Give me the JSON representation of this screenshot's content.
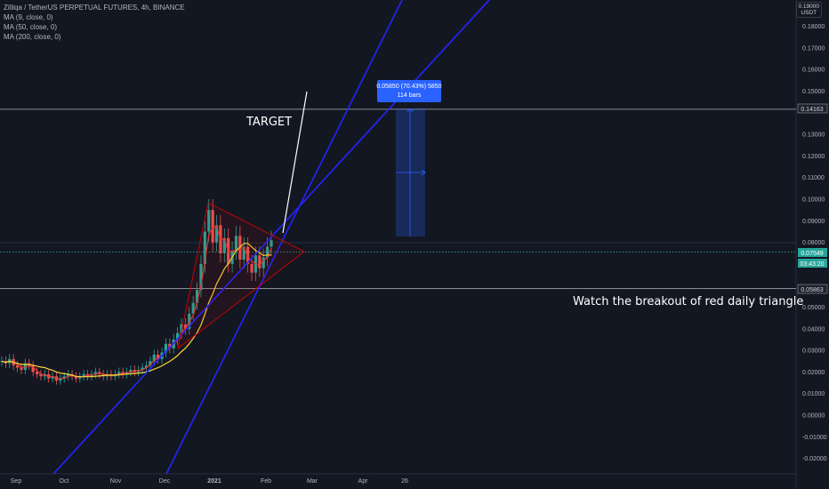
{
  "legend": {
    "title": "Zilliqa / TetherUS PERPETUAL FUTURES, 4h, BINANCE",
    "ma9": "MA (9, close, 0)",
    "ma50": "MA (50, close, 0)",
    "ma200": "MA (200, close, 0)"
  },
  "currency": {
    "top": "0.19000",
    "unit": "USDT"
  },
  "annotations": {
    "target": "TARGET",
    "watch": "Watch the breakout of red daily triangle",
    "measure_line1": "0.05850 (70.43%) 5850",
    "measure_line2": "114 bars"
  },
  "price_labels": {
    "level_high": "0.14163",
    "current_price": "0.07549",
    "countdown": "03:43:20",
    "level_low": "0.05863"
  },
  "colors": {
    "background": "#131722",
    "candle_up": "#26a69a",
    "candle_down": "#ef5350",
    "ma9": "#e53935",
    "ma50": "#fdd835",
    "trendline": "#2424ff",
    "triangle": "#d50000",
    "measure": "#2962ff"
  },
  "chart_data": {
    "type": "candlestick",
    "title": "Zilliqa / TetherUS PERPETUAL FUTURES, 4h, BINANCE",
    "xlabel": "",
    "ylabel": "",
    "x_ticks": [
      "Sep",
      "Oct",
      "Nov",
      "Dec",
      "2021",
      "Feb",
      "Mar",
      "Apr",
      "26"
    ],
    "y_ticks": [
      "0.18000",
      "0.17000",
      "0.16000",
      "0.15000",
      "0.13000",
      "0.12000",
      "0.11000",
      "0.10000",
      "0.09000",
      "0.08000",
      "0.05000",
      "0.04000",
      "0.03000",
      "0.02000",
      "0.01000",
      "0.00000",
      "-0.01000",
      "-0.02000"
    ],
    "ylim": [
      -0.024,
      0.19
    ],
    "grid": false,
    "horizontal_levels": [
      0.14163,
      0.05863
    ],
    "current_price": 0.07549,
    "price_series": [
      0.025,
      0.024,
      0.026,
      0.023,
      0.022,
      0.021,
      0.024,
      0.023,
      0.02,
      0.019,
      0.018,
      0.019,
      0.017,
      0.018,
      0.016,
      0.017,
      0.018,
      0.019,
      0.018,
      0.017,
      0.018,
      0.019,
      0.018,
      0.019,
      0.02,
      0.019,
      0.018,
      0.019,
      0.018,
      0.019,
      0.02,
      0.019,
      0.02,
      0.021,
      0.02,
      0.021,
      0.022,
      0.023,
      0.025,
      0.028,
      0.026,
      0.029,
      0.033,
      0.031,
      0.035,
      0.038,
      0.042,
      0.04,
      0.047,
      0.052,
      0.058,
      0.07,
      0.085,
      0.095,
      0.08,
      0.088,
      0.075,
      0.082,
      0.07,
      0.076,
      0.083,
      0.072,
      0.078,
      0.07,
      0.066,
      0.074,
      0.068,
      0.073,
      0.078,
      0.081
    ],
    "series": [
      {
        "name": "MA (9, close, 0)"
      },
      {
        "name": "MA (50, close, 0)"
      }
    ]
  }
}
